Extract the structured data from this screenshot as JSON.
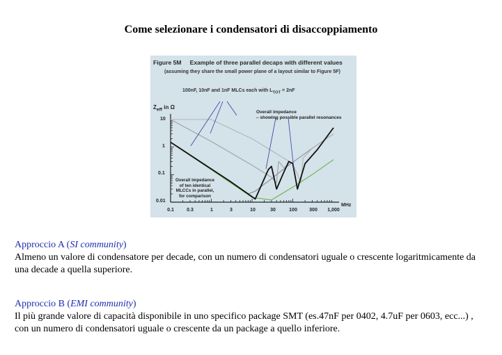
{
  "title": "Come selezionare i condensatori di disaccoppiamento",
  "figure": {
    "label": "Figure 5M",
    "caption": "Example of three parallel decaps with different values",
    "subtitle": "(assuming they share the small power plane of a layout similar to Figure 5F)",
    "note": "100nF, 10nF and 1nF MLCs each with L",
    "note_sub": "TOT",
    "note_end": " = 2nF",
    "y_axis_label": "Z",
    "y_axis_sub": "eff",
    "y_axis_unit": " in Ω",
    "x_axis_unit": "MHz",
    "annotation_1": [
      "Overall impedance",
      "– showing possible parallel resonances"
    ],
    "annotation_2": [
      "Overall impedance",
      "of ten identical",
      "MLCCs in parallel,",
      "for comparison"
    ],
    "y_ticks": [
      "10",
      "1",
      "0.1",
      "0.01"
    ],
    "x_ticks": [
      "0.1",
      "0.3",
      "1",
      "3",
      "10",
      "30",
      "100",
      "300",
      "1,000"
    ]
  },
  "chart_data": {
    "type": "line",
    "title": "Example of three parallel decaps with different values",
    "xlabel": "MHz",
    "ylabel": "Zeff in Ω",
    "x_scale": "log",
    "y_scale": "log",
    "xlim": [
      0.1,
      1000
    ],
    "ylim": [
      0.01,
      10
    ],
    "grid": false,
    "x_ticks": [
      "0.1",
      "0.3",
      "1",
      "3",
      "10",
      "30",
      "100",
      "300",
      "1,000"
    ],
    "y_ticks": [
      "0.01",
      "0.1",
      "1",
      "10"
    ],
    "series": [
      {
        "color": "#8a8a8a",
        "x": [
          0.1,
          1,
          3,
          5,
          8,
          12,
          20,
          30,
          50,
          100,
          300,
          1000
        ],
        "y": [
          1.5,
          0.16,
          0.055,
          0.032,
          0.02,
          0.025,
          0.045,
          0.07,
          0.13,
          0.28,
          0.9,
          3
        ]
      },
      {
        "color": "#a0a0a0",
        "x": [
          0.1,
          1,
          10,
          30,
          40,
          45,
          60,
          100,
          300,
          1000
        ],
        "y": [
          10,
          1.6,
          0.22,
          0.08,
          0.05,
          0.3,
          0.18,
          0.28,
          0.9,
          3
        ]
      },
      {
        "color": "#b4b4b4",
        "x": [
          0.1,
          1,
          10,
          100,
          160,
          180,
          300,
          1000
        ],
        "y": [
          10,
          10,
          2,
          0.25,
          0.05,
          0.4,
          0.9,
          3
        ]
      },
      {
        "color": "#6cb24a",
        "x": [
          0.1,
          1,
          10,
          30,
          100,
          300,
          1000
        ],
        "y": [
          1.5,
          0.15,
          0.015,
          0.012,
          0.035,
          0.1,
          0.35
        ]
      },
      {
        "color": "#111111",
        "x": [
          0.1,
          1,
          3,
          8,
          12,
          18,
          25,
          30,
          40,
          60,
          80,
          100,
          130,
          200,
          400,
          1000
        ],
        "y": [
          1.5,
          0.16,
          0.055,
          0.02,
          0.013,
          0.05,
          0.15,
          0.2,
          0.03,
          0.12,
          0.3,
          0.25,
          0.03,
          0.25,
          0.8,
          5
        ]
      }
    ]
  },
  "sections": [
    {
      "heading_pre": "Approccio A (",
      "heading_em": "SI community",
      "heading_post": ")",
      "body": "Almeno un valore di condensatore per decade, con un numero di condensatori uguale o crescente logaritmicamente da una decade a quella superiore."
    },
    {
      "heading_pre": "Approccio B (",
      "heading_em": "EMI community",
      "heading_post": ")",
      "body": "Il più grande valore di capacità disponibile in uno specifico package SMT (es.47nF per 0402, 4.7uF per 0603, ecc...) , con un numero di condensatori uguale o crescente da un package a quello inferiore."
    }
  ]
}
